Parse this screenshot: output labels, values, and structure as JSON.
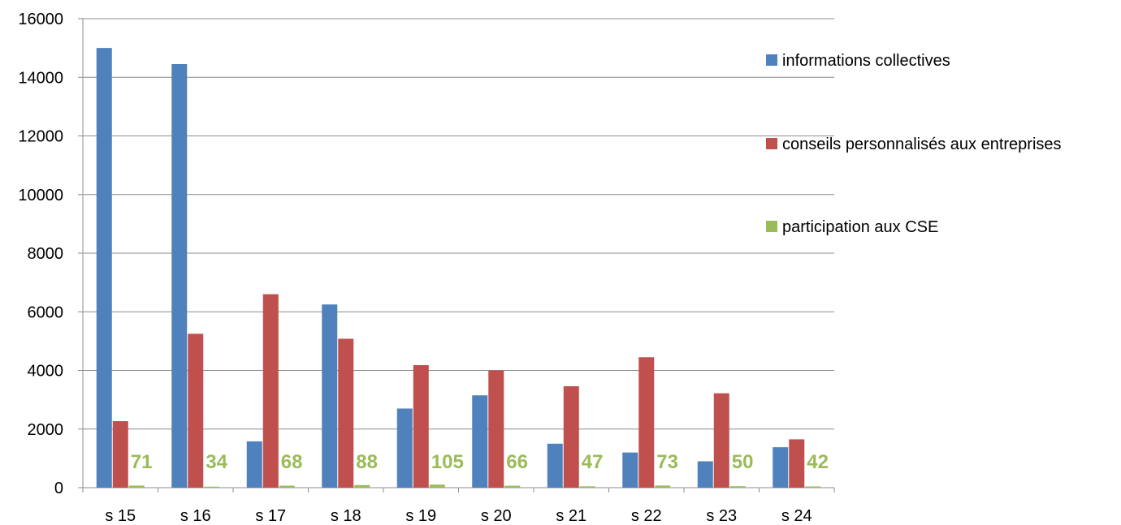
{
  "chart_data": {
    "type": "bar",
    "categories": [
      "s 15",
      "s 16",
      "s 17",
      "s 18",
      "s 19",
      "s 20",
      "s 21",
      "s 22",
      "s 23",
      "s 24"
    ],
    "series": [
      {
        "name": "informations collectives",
        "color": "#4F81BD",
        "values": [
          15000,
          14450,
          1580,
          6250,
          2700,
          3150,
          1500,
          1200,
          900,
          1380
        ]
      },
      {
        "name": "conseils personnalisés aux entreprises",
        "color": "#C0504D",
        "values": [
          2270,
          5250,
          6600,
          5080,
          4180,
          4000,
          3460,
          4450,
          3220,
          1650
        ]
      },
      {
        "name": "participation aux CSE",
        "color": "#9BBB59",
        "values": [
          71,
          34,
          68,
          88,
          105,
          66,
          47,
          73,
          50,
          42
        ],
        "data_labels": [
          "71",
          "34",
          "68",
          "88",
          "105",
          "66",
          "47",
          "73",
          "50",
          "42"
        ]
      }
    ],
    "yticks": [
      "0",
      "2000",
      "4000",
      "6000",
      "8000",
      "10000",
      "12000",
      "14000",
      "16000"
    ],
    "ylim": [
      0,
      16000
    ],
    "grid": true,
    "legend_position": "right",
    "title": "",
    "xlabel": "",
    "ylabel": ""
  }
}
